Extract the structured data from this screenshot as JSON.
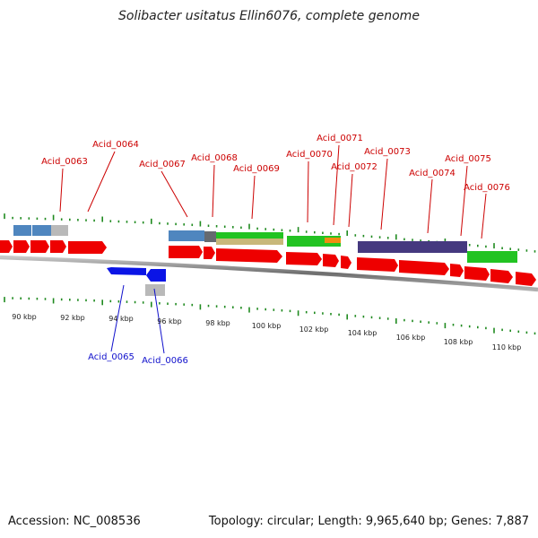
{
  "title": "Solibacter usitatus Ellin6076, complete genome",
  "footer": {
    "accession": "Accession: NC_008536",
    "topology": "Topology: circular; Length: 9,965,640 bp; Genes: 7,887"
  },
  "colors": {
    "gene_forward": "#ee0000",
    "gene_reverse": "#0a14e6",
    "label_forward": "#cc0000",
    "label_reverse": "#1010cc",
    "tick": "#1f8a1f",
    "backbone": "#808080"
  },
  "scale_labels": [
    "90 kbp",
    "92 kbp",
    "94 kbp",
    "96 kbp",
    "98 kbp",
    "100 kbp",
    "102 kbp",
    "104 kbp",
    "106 kbp",
    "108 kbp",
    "110 kbp"
  ],
  "genes_forward_labels": [
    "Acid_0063",
    "Acid_0064",
    "Acid_0067",
    "Acid_0068",
    "Acid_0069",
    "Acid_0070",
    "Acid_0071",
    "Acid_0072",
    "Acid_0073",
    "Acid_0074",
    "Acid_0075",
    "Acid_0076"
  ],
  "genes_reverse_labels": [
    "Acid_0065",
    "Acid_0066"
  ]
}
